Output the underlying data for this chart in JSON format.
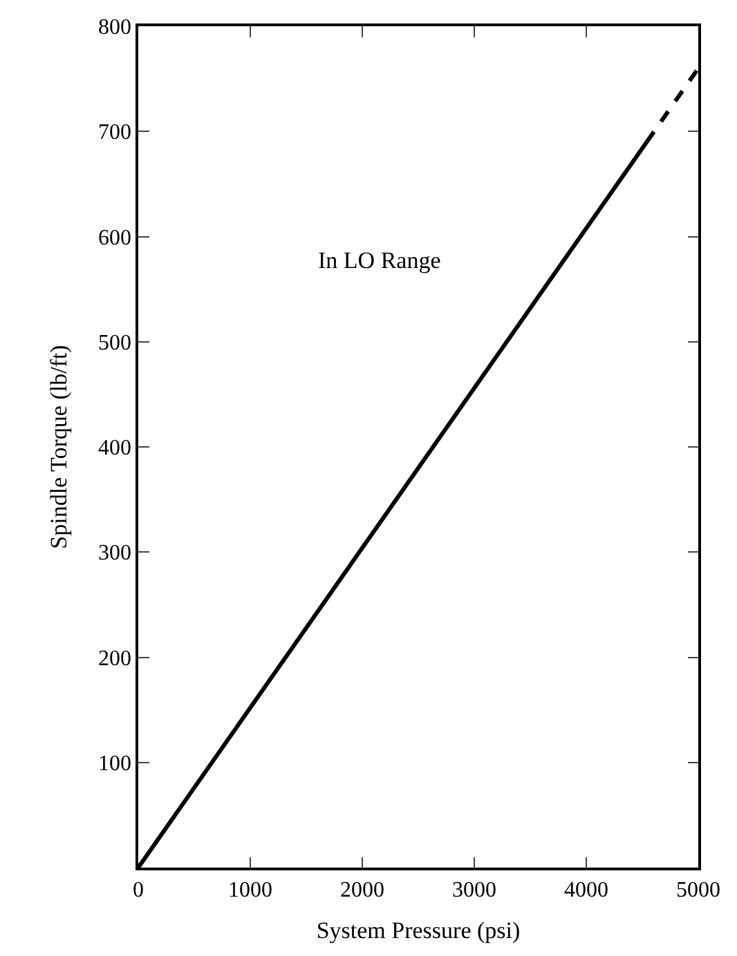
{
  "chart_data": {
    "type": "line",
    "xlabel": "System Pressure (psi)",
    "ylabel": "Spindle Torque (lb/ft)",
    "annotations": [
      "In LO Range"
    ],
    "series": [
      {
        "x": [
          0,
          4540
        ],
        "values": [
          0,
          690
        ],
        "color": "#000000",
        "line_style": "solid"
      },
      {
        "x": [
          4540,
          5000
        ],
        "values": [
          690,
          760
        ],
        "color": "#000000",
        "line_style": "dashed"
      }
    ],
    "xlim": [
      0,
      5000
    ],
    "xticks": [
      0,
      1000,
      2000,
      3000,
      4000,
      5000
    ],
    "ylim": [
      0,
      800
    ],
    "yticks": [
      100,
      200,
      300,
      400,
      500,
      600,
      700,
      800
    ],
    "marker": "none"
  }
}
